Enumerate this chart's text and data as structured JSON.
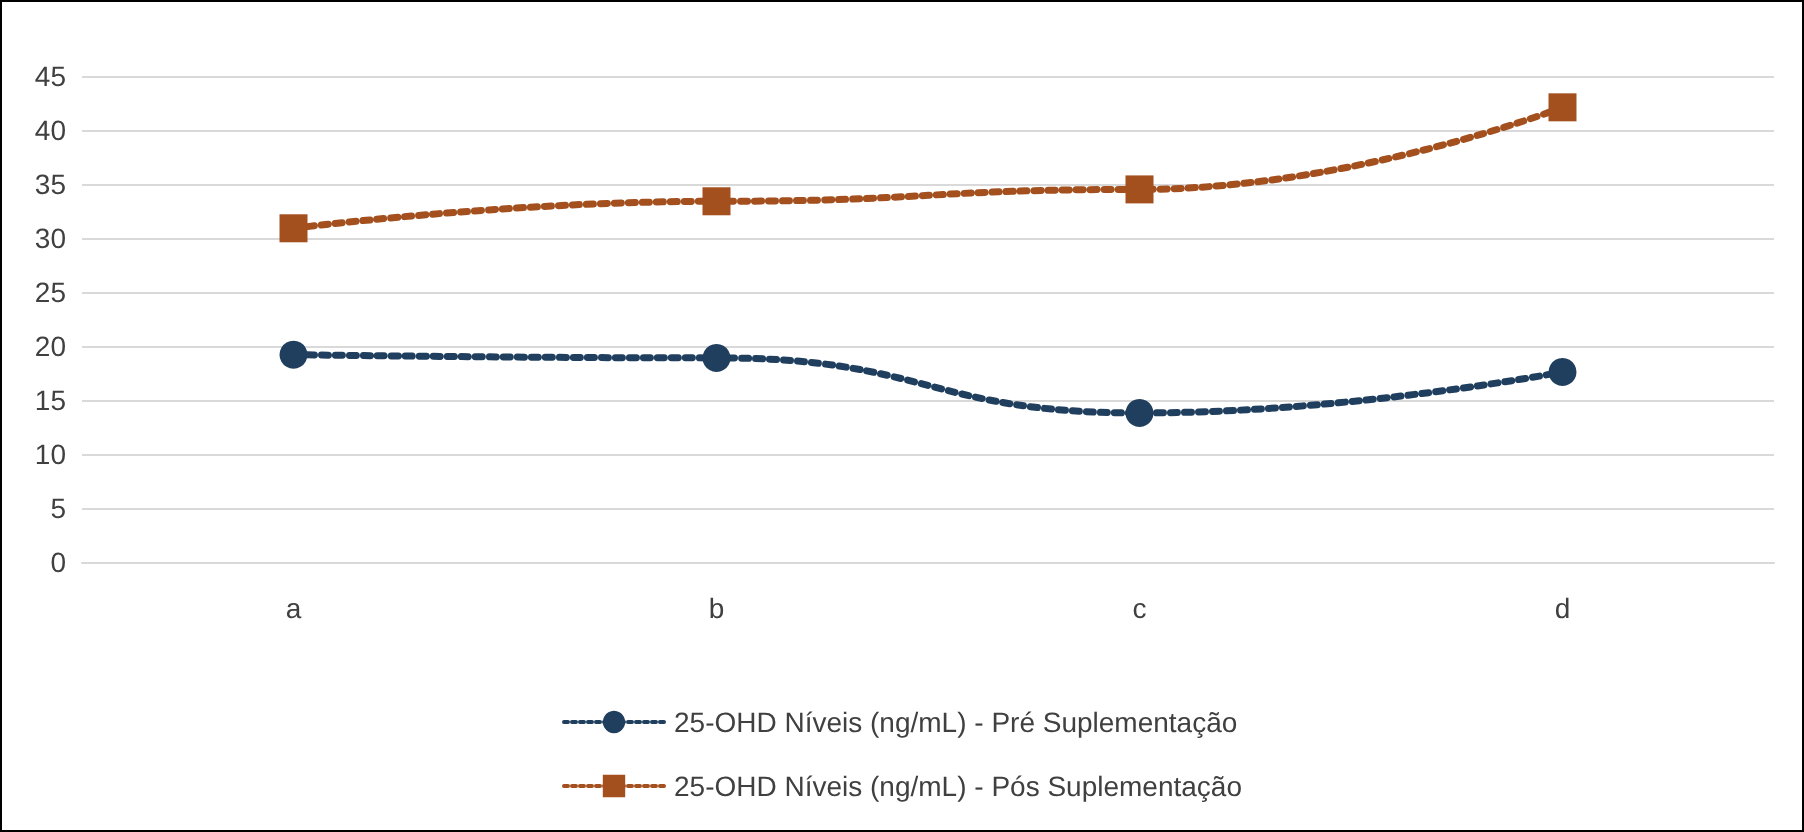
{
  "chart_data": {
    "type": "line",
    "categories": [
      "a",
      "b",
      "c",
      "d"
    ],
    "series": [
      {
        "name": "25-OHD Níveis (ng/mL) - Pré Suplementação",
        "color": "#203f5e",
        "marker": "circle",
        "values": [
          19.2,
          18.9,
          13.8,
          17.6
        ]
      },
      {
        "name": "25-OHD Níveis (ng/mL) - Pós Suplementação",
        "color": "#a3501e",
        "marker": "square",
        "values": [
          30.9,
          33.4,
          34.5,
          42.1
        ]
      }
    ],
    "ylim": [
      0,
      45
    ],
    "yticks": [
      0,
      5,
      10,
      15,
      20,
      25,
      30,
      35,
      40,
      45
    ],
    "grid": "y",
    "legend": "bottom",
    "line_style": "dotted"
  }
}
